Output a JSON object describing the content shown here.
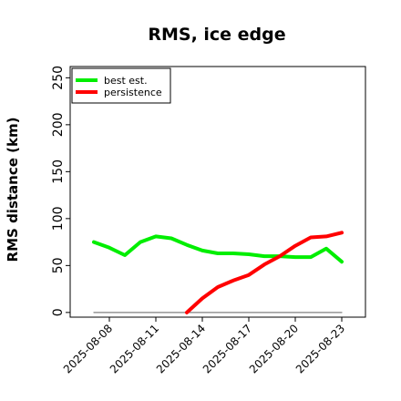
{
  "chart_data": {
    "type": "line",
    "title": "RMS, ice edge",
    "xlabel": "",
    "ylabel": "RMS distance (km)",
    "ylim": [
      -5,
      262
    ],
    "yticks": [
      0,
      50,
      100,
      150,
      200,
      250
    ],
    "x": [
      "2025-08-07",
      "2025-08-08",
      "2025-08-09",
      "2025-08-10",
      "2025-08-11",
      "2025-08-12",
      "2025-08-13",
      "2025-08-14",
      "2025-08-15",
      "2025-08-16",
      "2025-08-17",
      "2025-08-18",
      "2025-08-19",
      "2025-08-20",
      "2025-08-21",
      "2025-08-22",
      "2025-08-23"
    ],
    "xticks": [
      "2025-08-08",
      "2025-08-11",
      "2025-08-14",
      "2025-08-17",
      "2025-08-20",
      "2025-08-23"
    ],
    "grid": false,
    "legend": "top-left",
    "series": [
      {
        "name": "best est.",
        "color": "#00ee00",
        "values": [
          75,
          69,
          61,
          75,
          81,
          79,
          72,
          66,
          63,
          63,
          62,
          60,
          60,
          59,
          59,
          68,
          54
        ]
      },
      {
        "name": "persistence",
        "color": "#ff0000",
        "values": [
          null,
          null,
          null,
          null,
          null,
          null,
          0,
          15,
          27,
          34,
          40,
          51,
          60,
          71,
          80,
          81,
          85
        ]
      },
      {
        "name": "",
        "color": "#808080",
        "values": [
          0,
          0,
          0,
          0,
          0,
          0,
          0,
          0,
          0,
          0,
          0,
          0,
          0,
          0,
          0,
          0,
          0
        ]
      }
    ]
  }
}
